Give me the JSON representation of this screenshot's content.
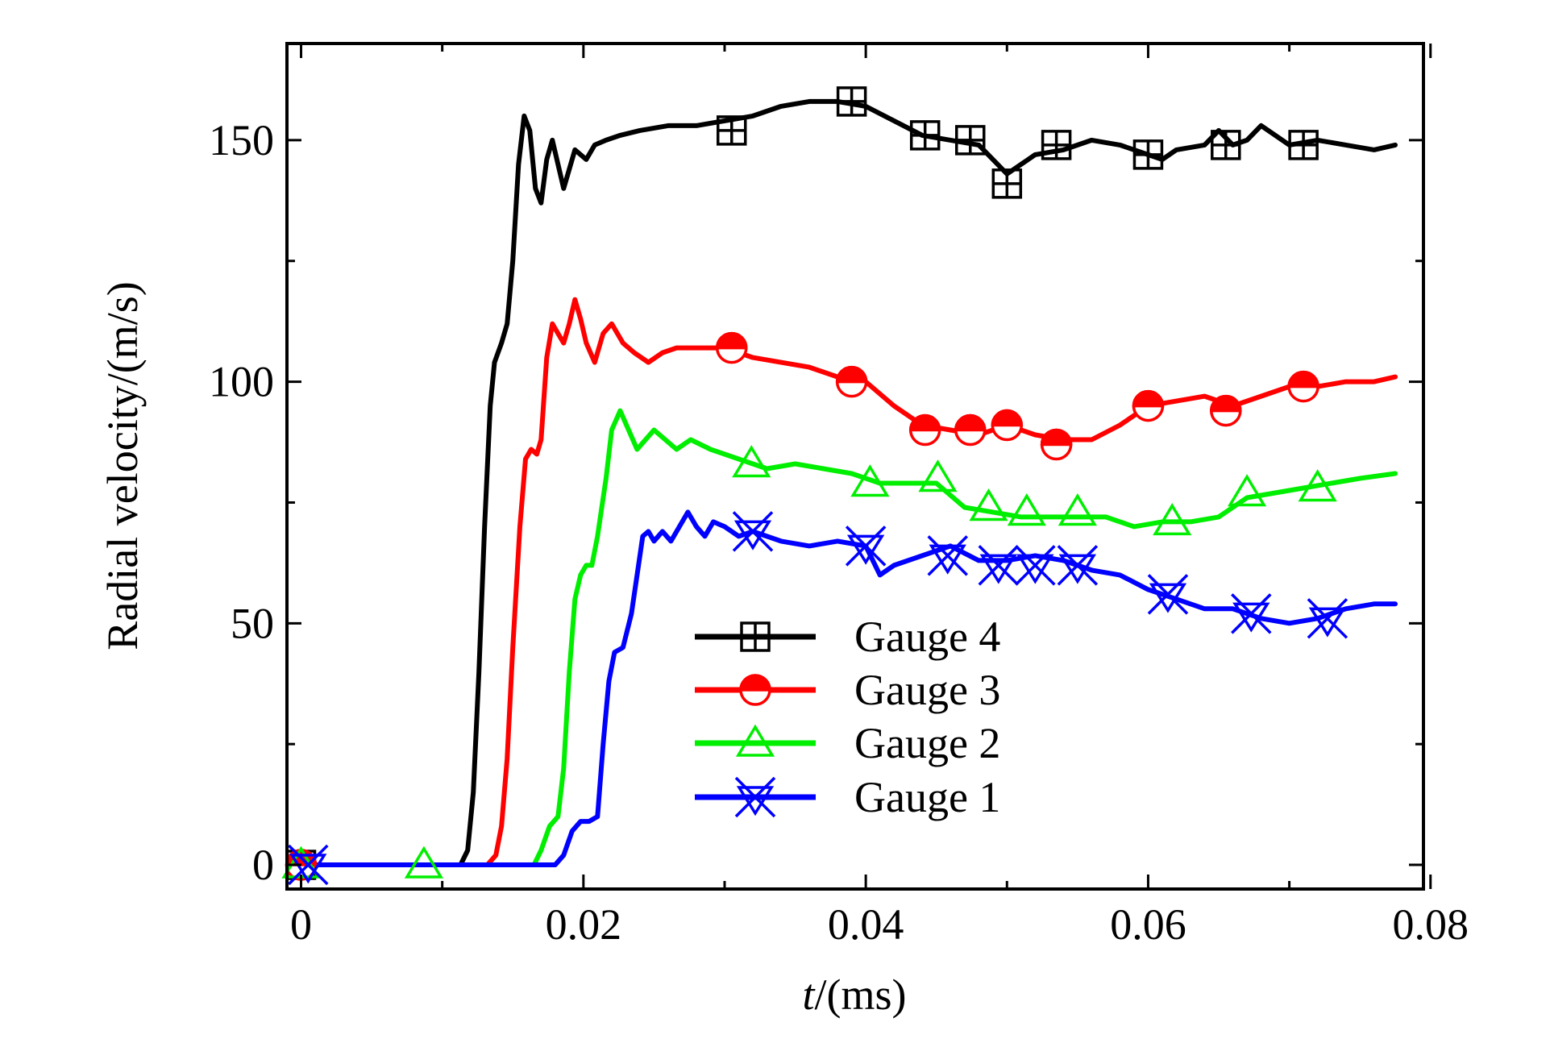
{
  "chart_data": {
    "type": "line",
    "title": "",
    "xlabel_italic": "t",
    "xlabel_rest": "/(ms)",
    "ylabel": "Radial velocity/(m/s)",
    "xlim": [
      -0.001,
      0.0795
    ],
    "ylim": [
      -5,
      170
    ],
    "x_ticks": [
      0,
      0.02,
      0.04,
      0.06,
      0.08
    ],
    "x_tick_labels": [
      "0",
      "0.02",
      "0.04",
      "0.06",
      "0.08"
    ],
    "y_ticks": [
      0,
      50,
      100,
      150
    ],
    "y_tick_labels": [
      "0",
      "50",
      "100",
      "150"
    ],
    "x_minor_ticks": [
      0.01,
      0.03,
      0.05,
      0.07
    ],
    "y_minor_ticks": [
      25,
      75,
      125
    ],
    "legend_position": "lower-center",
    "series": [
      {
        "name": "Gauge 4",
        "color": "#000000",
        "marker": "square-plus",
        "points": [
          [
            0,
            0
          ],
          [
            0.0105,
            0
          ],
          [
            0.0113,
            0
          ],
          [
            0.0118,
            3
          ],
          [
            0.0122,
            15
          ],
          [
            0.0126,
            40
          ],
          [
            0.013,
            70
          ],
          [
            0.0134,
            95
          ],
          [
            0.0137,
            104
          ],
          [
            0.0142,
            108
          ],
          [
            0.0146,
            112
          ],
          [
            0.015,
            125
          ],
          [
            0.0154,
            145
          ],
          [
            0.0158,
            155
          ],
          [
            0.0162,
            152
          ],
          [
            0.0166,
            140
          ],
          [
            0.017,
            137
          ],
          [
            0.0174,
            146
          ],
          [
            0.0178,
            150
          ],
          [
            0.0182,
            145
          ],
          [
            0.0186,
            140
          ],
          [
            0.019,
            144
          ],
          [
            0.0194,
            148
          ],
          [
            0.0198,
            147
          ],
          [
            0.0202,
            146
          ],
          [
            0.0208,
            149
          ],
          [
            0.0216,
            150
          ],
          [
            0.0226,
            151
          ],
          [
            0.024,
            152
          ],
          [
            0.026,
            153
          ],
          [
            0.028,
            153
          ],
          [
            0.03,
            154
          ],
          [
            0.032,
            155
          ],
          [
            0.034,
            157
          ],
          [
            0.036,
            158
          ],
          [
            0.038,
            158
          ],
          [
            0.04,
            157
          ],
          [
            0.042,
            154
          ],
          [
            0.044,
            151
          ],
          [
            0.046,
            150
          ],
          [
            0.048,
            149
          ],
          [
            0.05,
            143
          ],
          [
            0.051,
            145
          ],
          [
            0.052,
            147
          ],
          [
            0.054,
            148
          ],
          [
            0.056,
            150
          ],
          [
            0.058,
            149
          ],
          [
            0.06,
            147
          ],
          [
            0.061,
            146
          ],
          [
            0.062,
            148
          ],
          [
            0.064,
            149
          ],
          [
            0.065,
            152
          ],
          [
            0.066,
            149
          ],
          [
            0.067,
            150
          ],
          [
            0.068,
            153
          ],
          [
            0.069,
            151
          ],
          [
            0.07,
            149
          ],
          [
            0.072,
            150
          ],
          [
            0.074,
            149
          ],
          [
            0.076,
            148
          ],
          [
            0.0775,
            149
          ]
        ],
        "markers": [
          [
            0,
            0
          ],
          [
            0.0305,
            152
          ],
          [
            0.039,
            158
          ],
          [
            0.0442,
            151
          ],
          [
            0.0474,
            150
          ],
          [
            0.05,
            141
          ],
          [
            0.0535,
            149
          ],
          [
            0.06,
            147
          ],
          [
            0.0655,
            149
          ],
          [
            0.071,
            149
          ]
        ]
      },
      {
        "name": "Gauge 3",
        "color": "#ff0000",
        "marker": "half-filled-circle",
        "points": [
          [
            0,
            0
          ],
          [
            0.0132,
            0
          ],
          [
            0.0138,
            2
          ],
          [
            0.0142,
            8
          ],
          [
            0.0146,
            22
          ],
          [
            0.015,
            45
          ],
          [
            0.0155,
            70
          ],
          [
            0.0159,
            84
          ],
          [
            0.0163,
            86
          ],
          [
            0.0167,
            85
          ],
          [
            0.017,
            88
          ],
          [
            0.0174,
            105
          ],
          [
            0.0178,
            112
          ],
          [
            0.0182,
            110
          ],
          [
            0.0186,
            108
          ],
          [
            0.019,
            112
          ],
          [
            0.0194,
            117
          ],
          [
            0.0198,
            113
          ],
          [
            0.0202,
            108
          ],
          [
            0.0208,
            104
          ],
          [
            0.0214,
            110
          ],
          [
            0.022,
            112
          ],
          [
            0.0228,
            108
          ],
          [
            0.0236,
            106
          ],
          [
            0.0246,
            104
          ],
          [
            0.0256,
            106
          ],
          [
            0.0266,
            107
          ],
          [
            0.028,
            107
          ],
          [
            0.03,
            107
          ],
          [
            0.032,
            105
          ],
          [
            0.034,
            104
          ],
          [
            0.036,
            103
          ],
          [
            0.038,
            101
          ],
          [
            0.04,
            100
          ],
          [
            0.042,
            95
          ],
          [
            0.044,
            91
          ],
          [
            0.046,
            90
          ],
          [
            0.048,
            89
          ],
          [
            0.05,
            91
          ],
          [
            0.052,
            89
          ],
          [
            0.054,
            88
          ],
          [
            0.056,
            88
          ],
          [
            0.058,
            91
          ],
          [
            0.06,
            95
          ],
          [
            0.062,
            96
          ],
          [
            0.064,
            97
          ],
          [
            0.066,
            95
          ],
          [
            0.068,
            97
          ],
          [
            0.07,
            99
          ],
          [
            0.072,
            99
          ],
          [
            0.074,
            100
          ],
          [
            0.076,
            100
          ],
          [
            0.0775,
            101
          ]
        ],
        "markers": [
          [
            0,
            0
          ],
          [
            0.0305,
            107
          ],
          [
            0.039,
            100
          ],
          [
            0.0442,
            90
          ],
          [
            0.0474,
            90
          ],
          [
            0.05,
            91
          ],
          [
            0.0535,
            87
          ],
          [
            0.06,
            95
          ],
          [
            0.0655,
            94
          ],
          [
            0.071,
            99
          ]
        ]
      },
      {
        "name": "Gauge 2",
        "color": "#00ee00",
        "marker": "triangle",
        "points": [
          [
            0,
            0
          ],
          [
            0.0165,
            0
          ],
          [
            0.017,
            3
          ],
          [
            0.0176,
            8
          ],
          [
            0.0182,
            10
          ],
          [
            0.0186,
            20
          ],
          [
            0.019,
            40
          ],
          [
            0.0194,
            55
          ],
          [
            0.0198,
            60
          ],
          [
            0.0202,
            62
          ],
          [
            0.0206,
            62
          ],
          [
            0.021,
            68
          ],
          [
            0.0216,
            80
          ],
          [
            0.022,
            90
          ],
          [
            0.0226,
            94
          ],
          [
            0.0232,
            90
          ],
          [
            0.0238,
            86
          ],
          [
            0.0244,
            88
          ],
          [
            0.025,
            90
          ],
          [
            0.0258,
            88
          ],
          [
            0.0266,
            86
          ],
          [
            0.0276,
            88
          ],
          [
            0.029,
            86
          ],
          [
            0.031,
            84
          ],
          [
            0.033,
            82
          ],
          [
            0.035,
            83
          ],
          [
            0.037,
            82
          ],
          [
            0.039,
            81
          ],
          [
            0.041,
            79
          ],
          [
            0.043,
            79
          ],
          [
            0.045,
            79
          ],
          [
            0.047,
            74
          ],
          [
            0.049,
            73
          ],
          [
            0.051,
            72
          ],
          [
            0.053,
            72
          ],
          [
            0.055,
            72
          ],
          [
            0.057,
            72
          ],
          [
            0.059,
            70
          ],
          [
            0.061,
            71
          ],
          [
            0.063,
            71
          ],
          [
            0.065,
            72
          ],
          [
            0.067,
            76
          ],
          [
            0.069,
            77
          ],
          [
            0.071,
            78
          ],
          [
            0.073,
            79
          ],
          [
            0.075,
            80
          ],
          [
            0.0775,
            81
          ]
        ],
        "markers": [
          [
            0,
            0
          ],
          [
            0.0087,
            0
          ],
          [
            0.0319,
            83
          ],
          [
            0.0403,
            79
          ],
          [
            0.0451,
            80
          ],
          [
            0.0487,
            74
          ],
          [
            0.0514,
            73
          ],
          [
            0.055,
            73
          ],
          [
            0.0617,
            71
          ],
          [
            0.067,
            77
          ],
          [
            0.072,
            78
          ]
        ]
      },
      {
        "name": "Gauge 1",
        "color": "#0000ff",
        "marker": "star-x",
        "points": [
          [
            0,
            0
          ],
          [
            0.018,
            0
          ],
          [
            0.0186,
            2
          ],
          [
            0.0192,
            7
          ],
          [
            0.0198,
            9
          ],
          [
            0.0204,
            9
          ],
          [
            0.021,
            10
          ],
          [
            0.0214,
            25
          ],
          [
            0.0218,
            38
          ],
          [
            0.0222,
            44
          ],
          [
            0.0228,
            45
          ],
          [
            0.0234,
            52
          ],
          [
            0.0238,
            60
          ],
          [
            0.0242,
            68
          ],
          [
            0.0246,
            69
          ],
          [
            0.025,
            67
          ],
          [
            0.0256,
            69
          ],
          [
            0.0262,
            67
          ],
          [
            0.0268,
            70
          ],
          [
            0.0274,
            73
          ],
          [
            0.028,
            70
          ],
          [
            0.0286,
            68
          ],
          [
            0.0292,
            71
          ],
          [
            0.03,
            70
          ],
          [
            0.031,
            68
          ],
          [
            0.032,
            69
          ],
          [
            0.034,
            67
          ],
          [
            0.036,
            66
          ],
          [
            0.038,
            67
          ],
          [
            0.04,
            66
          ],
          [
            0.041,
            60
          ],
          [
            0.042,
            62
          ],
          [
            0.044,
            64
          ],
          [
            0.046,
            66
          ],
          [
            0.048,
            63
          ],
          [
            0.05,
            63
          ],
          [
            0.052,
            64
          ],
          [
            0.054,
            63
          ],
          [
            0.056,
            61
          ],
          [
            0.058,
            60
          ],
          [
            0.06,
            57
          ],
          [
            0.062,
            55
          ],
          [
            0.064,
            53
          ],
          [
            0.066,
            53
          ],
          [
            0.068,
            51
          ],
          [
            0.07,
            50
          ],
          [
            0.072,
            51
          ],
          [
            0.074,
            53
          ],
          [
            0.076,
            54
          ],
          [
            0.0775,
            54
          ]
        ],
        "markers": [
          [
            0.0005,
            0
          ],
          [
            0.032,
            69
          ],
          [
            0.04,
            66
          ],
          [
            0.0458,
            64
          ],
          [
            0.0494,
            62
          ],
          [
            0.052,
            62
          ],
          [
            0.055,
            62
          ],
          [
            0.0614,
            56
          ],
          [
            0.0673,
            52
          ],
          [
            0.0727,
            51
          ]
        ]
      }
    ]
  }
}
